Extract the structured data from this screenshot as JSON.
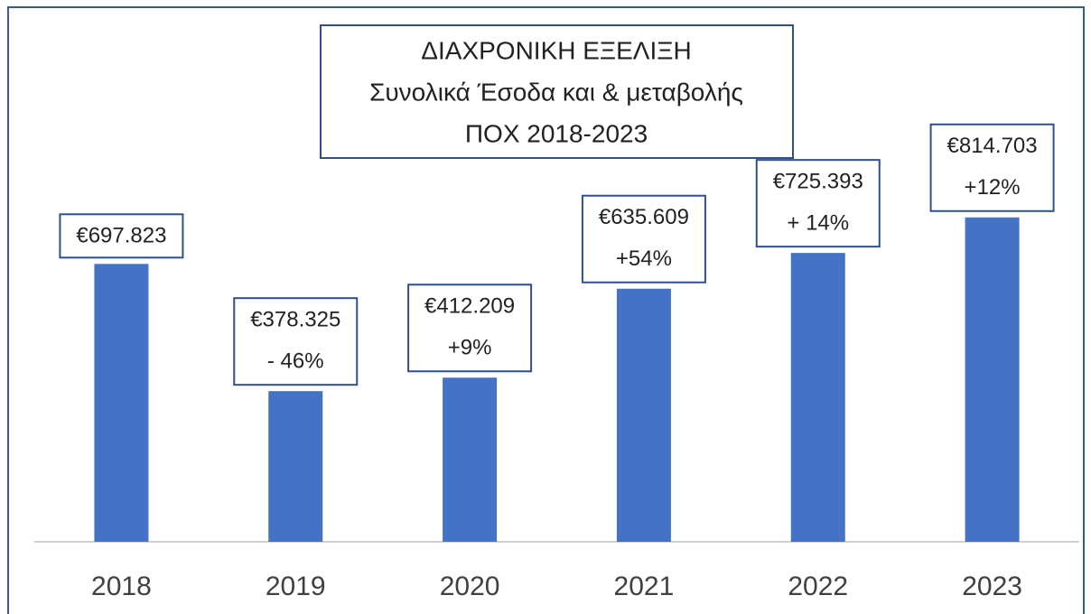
{
  "chart_data": {
    "type": "bar",
    "title": [
      "ΔΙΑΧΡΟΝΙΚΗ ΕΞΕΛΙΞΗ",
      "Συνολικά Έσοδα και & μεταβολής",
      "ΠΟΧ 2018-2023"
    ],
    "categories": [
      "2018",
      "2019",
      "2020",
      "2021",
      "2022",
      "2023"
    ],
    "values": [
      697823,
      378325,
      412209,
      635609,
      725393,
      814703
    ],
    "value_labels": [
      "€697.823",
      "€378.325",
      "€412.209",
      "€635.609",
      "€725.393",
      "€814.703"
    ],
    "changes": [
      null,
      "- 46%",
      "+9%",
      "+54%",
      "+ 14%",
      "+12%"
    ],
    "color": "#4472c4",
    "ylim": [
      0,
      1270000
    ]
  }
}
